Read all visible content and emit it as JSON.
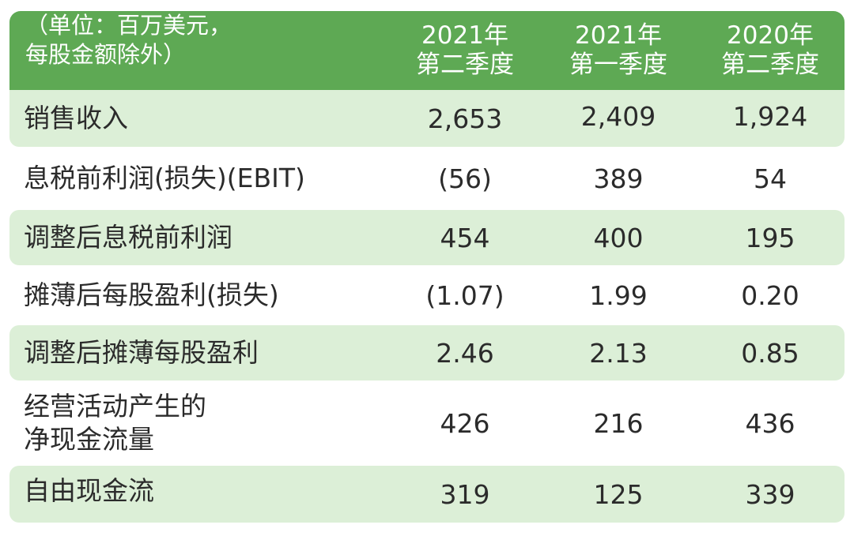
{
  "header": {
    "unit_line1": "（单位：百万美元，",
    "unit_line2": "每股金额除外）",
    "columns": [
      {
        "line1": "2021年",
        "line2": "第二季度"
      },
      {
        "line1": "2021年",
        "line2": "第一季度"
      },
      {
        "line1": "2020年",
        "line2": "第二季度"
      }
    ]
  },
  "rows": [
    {
      "label": "销售收入",
      "values": [
        "2,653",
        "2,409",
        "1,924"
      ]
    },
    {
      "label": "息税前利润(损失)(EBIT)",
      "values": [
        "(56)",
        "389",
        "54"
      ]
    },
    {
      "label": "调整后息税前利润",
      "values": [
        "454",
        "400",
        "195"
      ]
    },
    {
      "label": "摊薄后每股盈利(损失)",
      "values": [
        "(1.07)",
        "1.99",
        "0.20"
      ]
    },
    {
      "label": "调整后摊薄每股盈利",
      "values": [
        "2.46",
        "2.13",
        "0.85"
      ]
    },
    {
      "label_line1": "经营活动产生的",
      "label_line2": "净现金流量",
      "values": [
        "426",
        "216",
        "436"
      ]
    },
    {
      "label": "自由现金流",
      "values": [
        "319",
        "125",
        "339"
      ]
    }
  ],
  "colors": {
    "header_bg": "#5ea954",
    "row_shade": "#dcefd7",
    "text": "#2b2b2b"
  }
}
